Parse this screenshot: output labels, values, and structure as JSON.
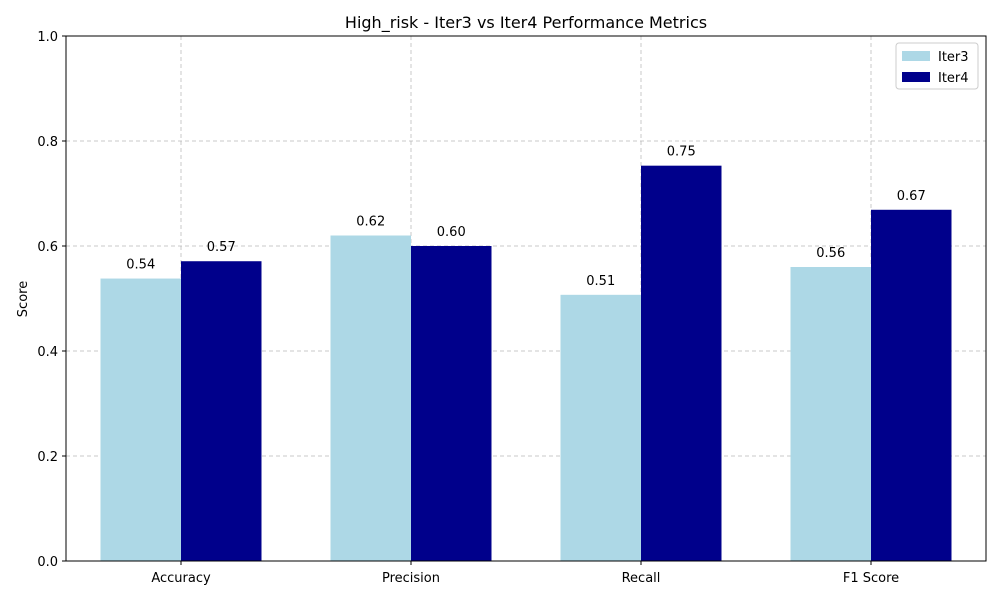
{
  "chart_data": {
    "type": "bar",
    "title": "High_risk - Iter3 vs Iter4 Performance Metrics",
    "xlabel": "",
    "ylabel": "Score",
    "categories": [
      "Accuracy",
      "Precision",
      "Recall",
      "F1 Score"
    ],
    "series": [
      {
        "name": "Iter3",
        "color": "#add8e6",
        "values": [
          0.538,
          0.62,
          0.507,
          0.56
        ]
      },
      {
        "name": "Iter4",
        "color": "#00008b",
        "values": [
          0.571,
          0.6,
          0.753,
          0.669
        ]
      }
    ],
    "data_labels": [
      [
        "0.54",
        "0.62",
        "0.51",
        "0.56"
      ],
      [
        "0.57",
        "0.60",
        "0.75",
        "0.67"
      ]
    ],
    "ylim": [
      0,
      1.0
    ],
    "yticks": [
      "0.0",
      "0.2",
      "0.4",
      "0.6",
      "0.8",
      "1.0"
    ],
    "grid": true,
    "legend_position": "top-right"
  }
}
